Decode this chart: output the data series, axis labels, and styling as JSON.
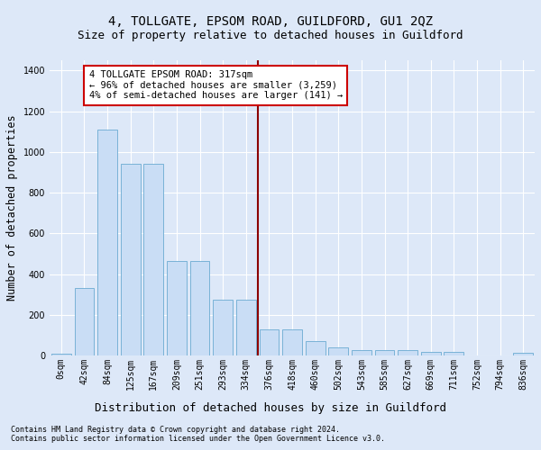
{
  "title": "4, TOLLGATE, EPSOM ROAD, GUILDFORD, GU1 2QZ",
  "subtitle": "Size of property relative to detached houses in Guildford",
  "xlabel": "Distribution of detached houses by size in Guildford",
  "ylabel": "Number of detached properties",
  "footer_line1": "Contains HM Land Registry data © Crown copyright and database right 2024.",
  "footer_line2": "Contains public sector information licensed under the Open Government Licence v3.0.",
  "bar_labels": [
    "0sqm",
    "42sqm",
    "84sqm",
    "125sqm",
    "167sqm",
    "209sqm",
    "251sqm",
    "293sqm",
    "334sqm",
    "376sqm",
    "418sqm",
    "460sqm",
    "502sqm",
    "543sqm",
    "585sqm",
    "627sqm",
    "669sqm",
    "711sqm",
    "752sqm",
    "794sqm",
    "836sqm"
  ],
  "bar_values": [
    10,
    330,
    1110,
    940,
    940,
    465,
    465,
    275,
    275,
    130,
    130,
    70,
    40,
    25,
    25,
    25,
    17,
    17,
    0,
    0,
    12
  ],
  "bar_color": "#c9ddf5",
  "bar_edge_color": "#6aabd2",
  "vline_x": 8.5,
  "vline_color": "#8b0000",
  "annotation_text": "4 TOLLGATE EPSOM ROAD: 317sqm\n← 96% of detached houses are smaller (3,259)\n4% of semi-detached houses are larger (141) →",
  "annotation_box_color": "#ffffff",
  "annotation_box_edge": "#cc0000",
  "ylim": [
    0,
    1450
  ],
  "yticks": [
    0,
    200,
    400,
    600,
    800,
    1000,
    1200,
    1400
  ],
  "bg_color": "#dde8f8",
  "plot_bg_color": "#dde8f8",
  "grid_color": "#ffffff",
  "title_fontsize": 10,
  "subtitle_fontsize": 9,
  "tick_fontsize": 7,
  "ylabel_fontsize": 8.5,
  "footer_fontsize": 6
}
